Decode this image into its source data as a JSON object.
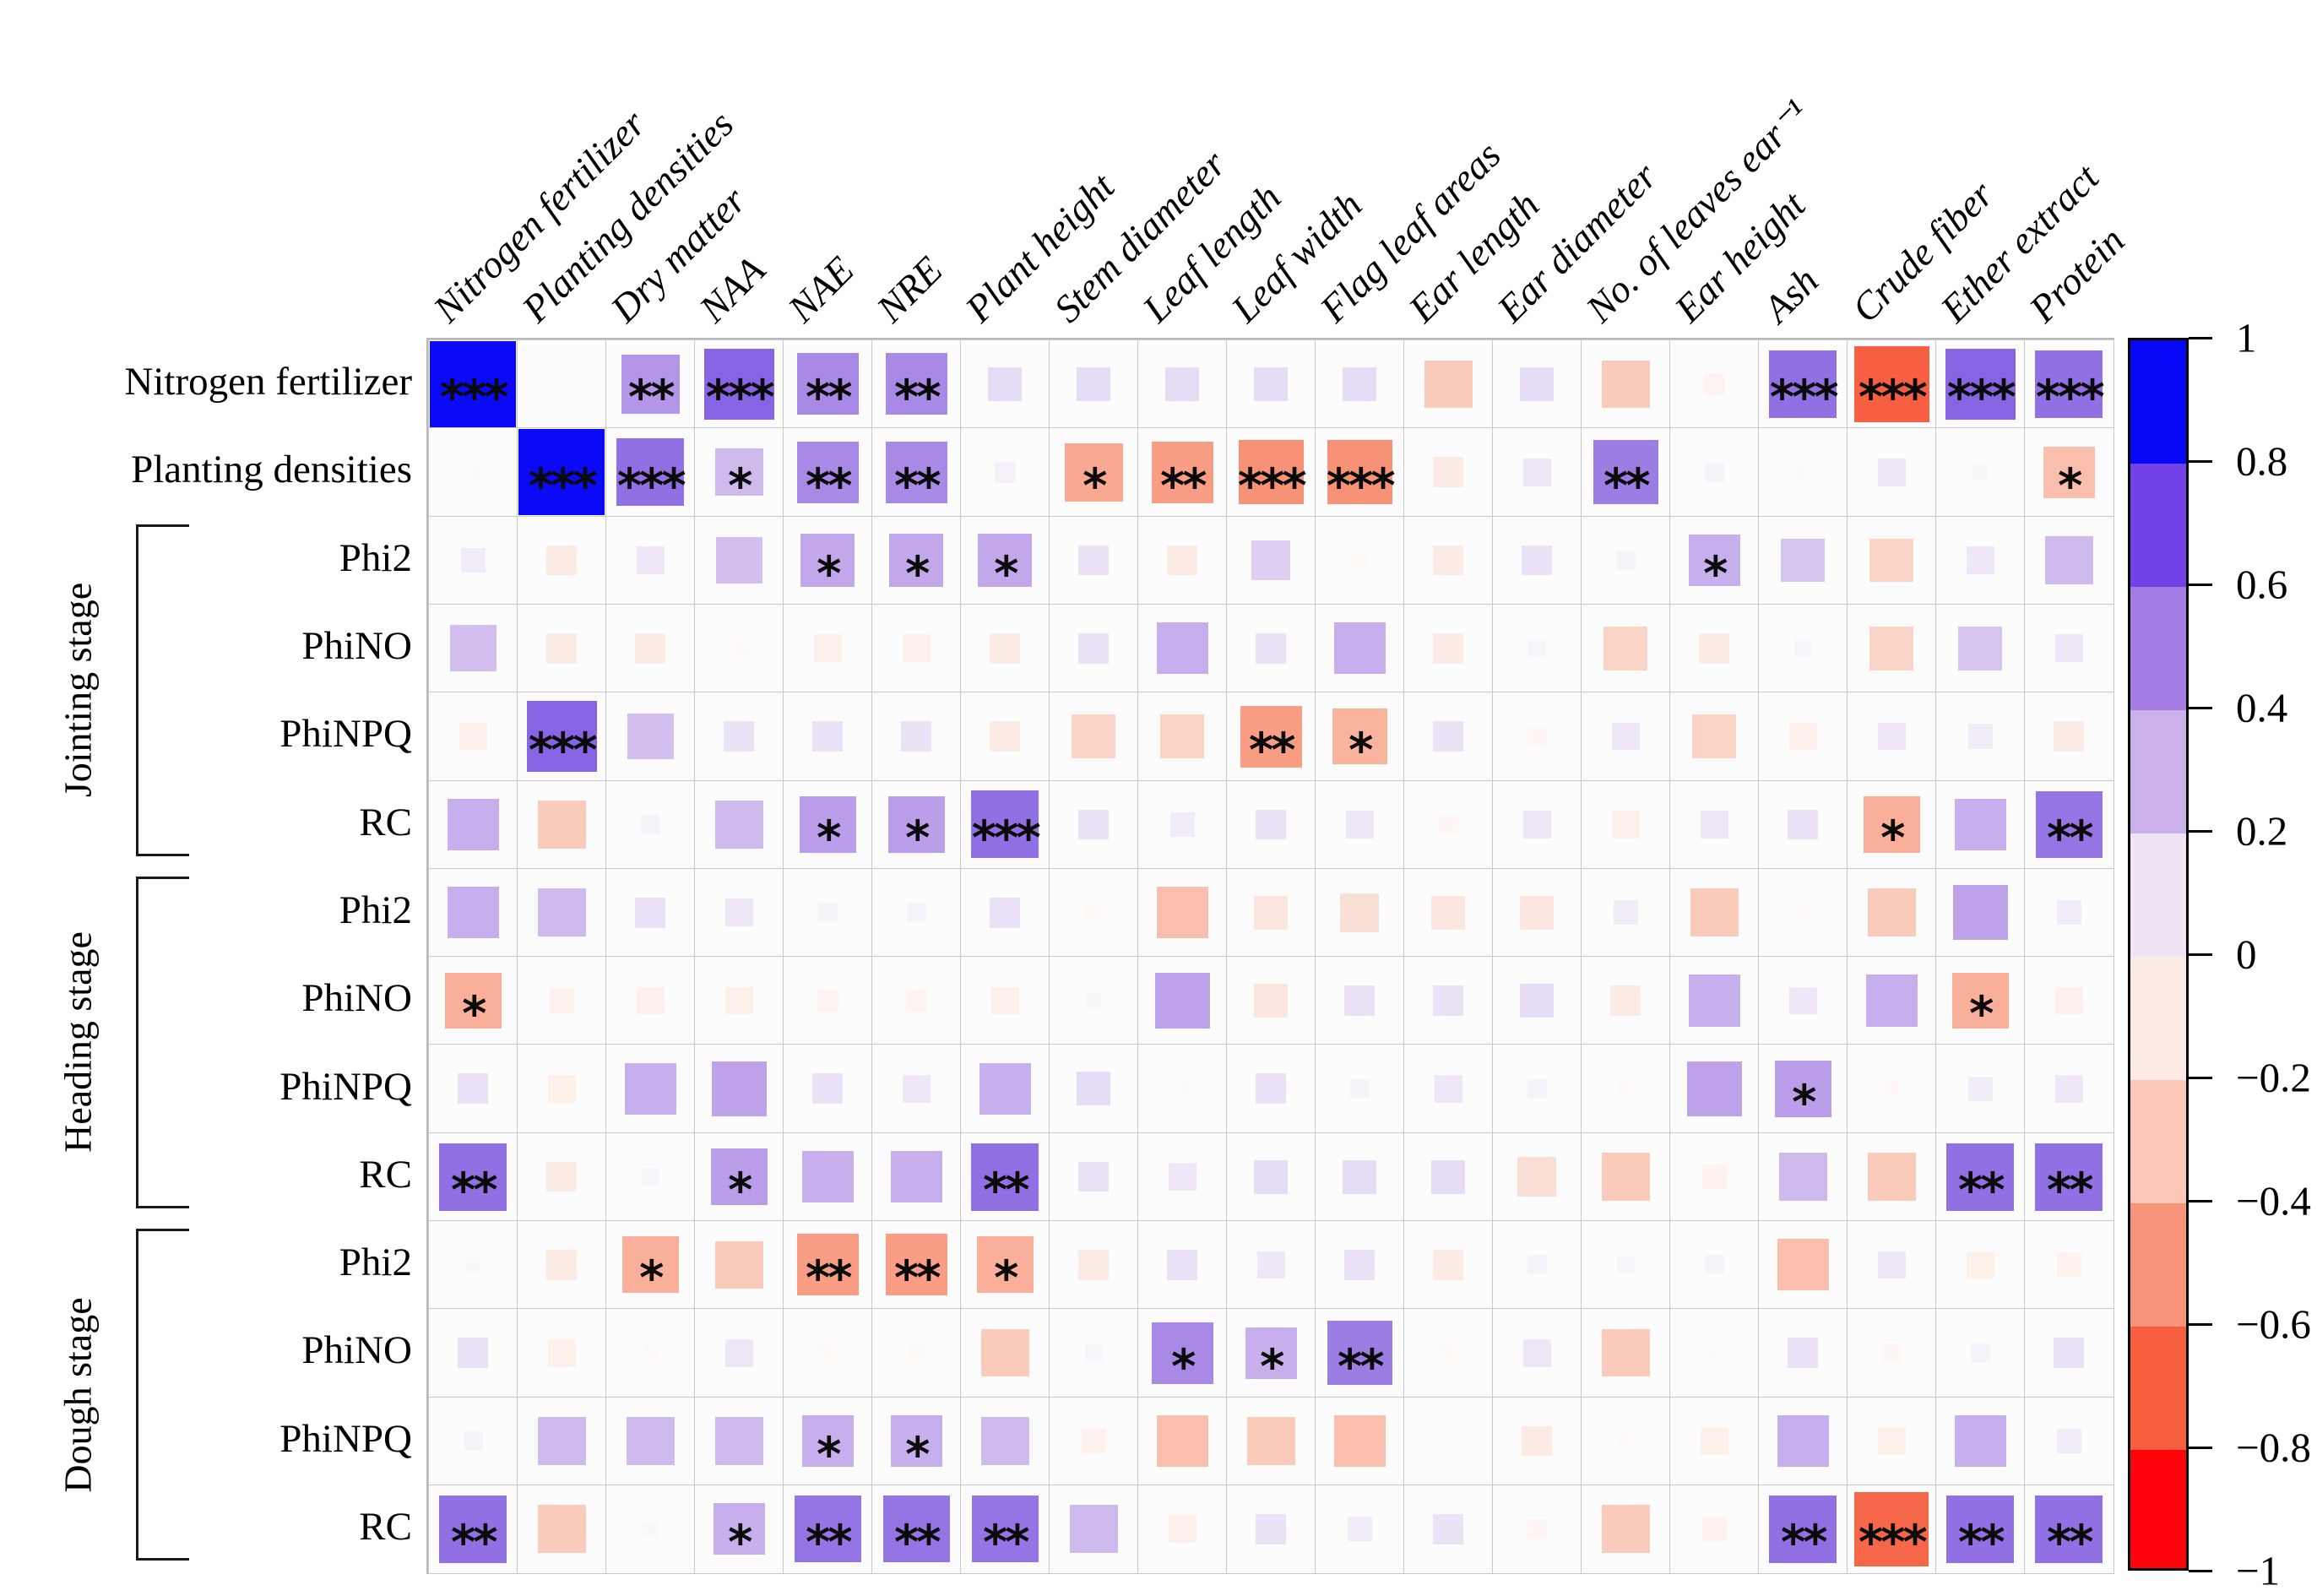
{
  "chart_data": {
    "type": "heatmap",
    "subtype": "correlation-matrix",
    "columns": [
      "Nitrogen fertilizer",
      "Planting densities",
      "Dry matter",
      "NAA",
      "NAE",
      "NRE",
      "Plant height",
      "Stem diameter",
      "Leaf length",
      "Leaf width",
      "Flag leaf areas",
      "Ear length",
      "Ear diameter",
      "No. of leaves ear⁻¹",
      "Ear height",
      "Ash",
      "Crude fiber",
      "Ether extract",
      "Protein"
    ],
    "rows": [
      "Nitrogen fertilizer",
      "Planting densities",
      "Phi2",
      "PhiNO",
      "PhiNPQ",
      "RC",
      "Phi2",
      "PhiNO",
      "PhiNPQ",
      "RC",
      "Phi2",
      "PhiNO",
      "PhiNPQ",
      "RC"
    ],
    "row_groups": [
      {
        "name": "Jointing stage",
        "start": 2,
        "end": 5
      },
      {
        "name": "Heading stage",
        "start": 6,
        "end": 9
      },
      {
        "name": "Dough stage",
        "start": 10,
        "end": 13
      }
    ],
    "values": [
      [
        1.0,
        0.0,
        0.45,
        0.65,
        0.5,
        0.5,
        0.15,
        0.15,
        0.15,
        0.15,
        0.15,
        -0.3,
        0.15,
        -0.3,
        -0.06,
        0.6,
        -0.75,
        0.65,
        0.6
      ],
      [
        0.02,
        1.0,
        0.6,
        0.3,
        0.5,
        0.5,
        0.06,
        -0.45,
        -0.5,
        -0.55,
        -0.55,
        -0.12,
        0.1,
        0.55,
        0.05,
        0.02,
        0.1,
        0.03,
        -0.35
      ],
      [
        0.08,
        -0.12,
        0.1,
        0.28,
        0.38,
        0.38,
        0.38,
        0.12,
        -0.12,
        0.2,
        -0.04,
        -0.12,
        0.12,
        0.05,
        0.35,
        0.25,
        -0.25,
        0.1,
        0.3
      ],
      [
        0.28,
        -0.12,
        -0.12,
        -0.04,
        -0.1,
        -0.1,
        -0.12,
        0.12,
        0.35,
        0.12,
        0.35,
        -0.12,
        0.04,
        -0.25,
        -0.12,
        0.04,
        -0.25,
        0.25,
        0.1
      ],
      [
        -0.1,
        0.65,
        0.28,
        0.12,
        0.12,
        0.12,
        -0.12,
        -0.25,
        -0.25,
        -0.5,
        -0.4,
        0.12,
        -0.05,
        0.1,
        -0.25,
        -0.1,
        0.1,
        0.08,
        -0.12
      ],
      [
        0.35,
        -0.3,
        0.05,
        0.3,
        0.42,
        0.42,
        0.6,
        0.12,
        0.08,
        0.12,
        0.1,
        -0.05,
        0.1,
        -0.1,
        0.1,
        0.12,
        -0.42,
        0.35,
        0.58
      ],
      [
        0.35,
        0.3,
        0.12,
        0.1,
        0.05,
        0.05,
        0.12,
        -0.04,
        -0.35,
        -0.15,
        -0.2,
        -0.15,
        -0.15,
        0.08,
        -0.3,
        -0.03,
        -0.3,
        0.4,
        0.08
      ],
      [
        -0.42,
        -0.08,
        -0.1,
        -0.1,
        -0.06,
        -0.06,
        -0.1,
        0.03,
        0.4,
        -0.15,
        0.12,
        0.12,
        0.15,
        -0.12,
        0.35,
        0.1,
        0.35,
        -0.42,
        -0.1
      ],
      [
        0.12,
        -0.1,
        0.35,
        0.4,
        0.12,
        0.1,
        0.35,
        0.15,
        0.02,
        0.12,
        0.05,
        0.1,
        0.05,
        -0.03,
        0.4,
        0.42,
        -0.03,
        0.08,
        0.1
      ],
      [
        0.6,
        -0.12,
        0.04,
        0.42,
        0.35,
        0.35,
        0.6,
        0.12,
        0.1,
        0.15,
        0.15,
        0.15,
        -0.2,
        -0.3,
        -0.08,
        0.3,
        -0.3,
        0.6,
        0.6
      ],
      [
        0.03,
        -0.12,
        -0.42,
        -0.3,
        -0.5,
        -0.5,
        -0.42,
        -0.12,
        0.12,
        0.1,
        0.12,
        -0.12,
        0.05,
        0.04,
        0.05,
        -0.35,
        0.1,
        -0.1,
        -0.08
      ],
      [
        0.12,
        -0.1,
        -0.03,
        0.1,
        -0.04,
        -0.04,
        -0.3,
        0.04,
        0.5,
        0.35,
        0.55,
        -0.04,
        0.1,
        -0.3,
        0.02,
        0.12,
        -0.05,
        0.05,
        0.12
      ],
      [
        0.05,
        0.3,
        0.3,
        0.3,
        0.35,
        0.35,
        0.3,
        -0.08,
        -0.35,
        -0.3,
        -0.35,
        0.01,
        -0.12,
        -0.03,
        -0.1,
        0.35,
        -0.1,
        0.35,
        0.08
      ],
      [
        0.6,
        -0.3,
        0.03,
        0.35,
        0.58,
        0.58,
        0.58,
        0.3,
        -0.1,
        0.12,
        0.08,
        0.12,
        -0.05,
        -0.3,
        -0.08,
        0.6,
        -0.72,
        0.6,
        0.6
      ]
    ],
    "significance": [
      [
        "***",
        "",
        "**",
        "***",
        "**",
        "**",
        "",
        "",
        "",
        "",
        "",
        "",
        "",
        "",
        "",
        "***",
        "***",
        "***",
        "***"
      ],
      [
        "",
        "***",
        "***",
        "*",
        "**",
        "**",
        "",
        "*",
        "**",
        "***",
        "***",
        "",
        "",
        "**",
        "",
        "",
        "",
        "",
        "*"
      ],
      [
        "",
        "",
        "",
        "",
        "*",
        "*",
        "*",
        "",
        "",
        "",
        "",
        "",
        "",
        "",
        "*",
        "",
        "",
        "",
        ""
      ],
      [
        "",
        "",
        "",
        "",
        "",
        "",
        "",
        "",
        "",
        "",
        "",
        "",
        "",
        "",
        "",
        "",
        "",
        "",
        ""
      ],
      [
        "",
        "***",
        "",
        "",
        "",
        "",
        "",
        "",
        "",
        "**",
        "*",
        "",
        "",
        "",
        "",
        "",
        "",
        "",
        ""
      ],
      [
        "",
        "",
        "",
        "",
        "*",
        "*",
        "***",
        "",
        "",
        "",
        "",
        "",
        "",
        "",
        "",
        "",
        "*",
        "",
        "**"
      ],
      [
        "",
        "",
        "",
        "",
        "",
        "",
        "",
        "",
        "",
        "",
        "",
        "",
        "",
        "",
        "",
        "",
        "",
        "",
        ""
      ],
      [
        "*",
        "",
        "",
        "",
        "",
        "",
        "",
        "",
        "",
        "",
        "",
        "",
        "",
        "",
        "",
        "",
        "",
        "*",
        ""
      ],
      [
        "",
        "",
        "",
        "",
        "",
        "",
        "",
        "",
        "",
        "",
        "",
        "",
        "",
        "",
        "",
        "*",
        "",
        "",
        ""
      ],
      [
        "**",
        "",
        "",
        "*",
        "",
        "",
        "**",
        "",
        "",
        "",
        "",
        "",
        "",
        "",
        "",
        "",
        "",
        "**",
        "**"
      ],
      [
        "",
        "",
        "*",
        "",
        "**",
        "**",
        "*",
        "",
        "",
        "",
        "",
        "",
        "",
        "",
        "",
        "",
        "",
        "",
        ""
      ],
      [
        "",
        "",
        "",
        "",
        "",
        "",
        "",
        "",
        "*",
        "*",
        "**",
        "",
        "",
        "",
        "",
        "",
        "",
        "",
        ""
      ],
      [
        "",
        "",
        "",
        "",
        "*",
        "*",
        "",
        "",
        "",
        "",
        "",
        "",
        "",
        "",
        "",
        "",
        "",
        "",
        ""
      ],
      [
        "**",
        "",
        "",
        "*",
        "**",
        "**",
        "**",
        "",
        "",
        "",
        "",
        "",
        "",
        "",
        "",
        "**",
        "***",
        "**",
        "**"
      ]
    ],
    "legend": {
      "position": "right",
      "range": [
        -1,
        1
      ],
      "ticks": [
        "1",
        "0.8",
        "0.6",
        "0.4",
        "0.2",
        "0",
        "−0.2",
        "−0.4",
        "−0.6",
        "−0.8",
        "−1"
      ],
      "bin_colors": [
        "#0808f8",
        "#7242e9",
        "#a47be2",
        "#cbb1ec",
        "#efe4f6",
        "#fcebe5",
        "#fac6b8",
        "#f8947a",
        "#f55f3d",
        "#fe040a"
      ]
    },
    "color_scale": {
      "stops": [
        {
          "v": 1.0,
          "c": "#0a0af8"
        },
        {
          "v": 0.8,
          "c": "#6a40ea"
        },
        {
          "v": 0.6,
          "c": "#9070e2"
        },
        {
          "v": 0.4,
          "c": "#bfa3ea"
        },
        {
          "v": 0.2,
          "c": "#ded0f2"
        },
        {
          "v": 0.0,
          "c": "#fffefe"
        },
        {
          "v": -0.2,
          "c": "#fadfd5"
        },
        {
          "v": -0.4,
          "c": "#f9b49e"
        },
        {
          "v": -0.6,
          "c": "#f8866a"
        },
        {
          "v": -0.8,
          "c": "#f55233"
        },
        {
          "v": -1.0,
          "c": "#fe040a"
        }
      ]
    },
    "encoding": {
      "square_size": "side ∝ sqrt(|r|)",
      "square_color": "diverging blue → white → red",
      "annotation": "significance stars * ** ***"
    }
  }
}
